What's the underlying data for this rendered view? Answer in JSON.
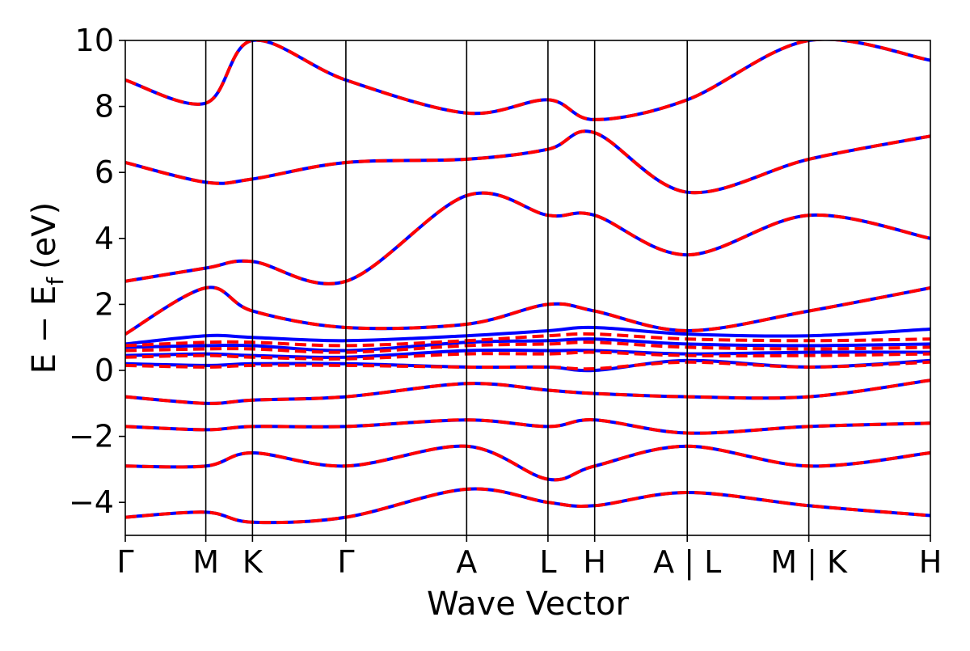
{
  "chart_data": {
    "type": "line",
    "title": "",
    "xlabel": "Wave Vector",
    "ylabel": "E − E",
    "ylabel_subscript": "f",
    "ylabel_unit": "(eV)",
    "ylim": [
      -5,
      10
    ],
    "yticks": [
      -4,
      -2,
      0,
      2,
      4,
      6,
      8,
      10
    ],
    "ytick_labels": [
      "−4",
      "−2",
      "0",
      "2",
      "4",
      "6",
      "8",
      "10"
    ],
    "xlim": [
      0,
      1
    ],
    "kpath": [
      {
        "x": 0.0,
        "label": "Γ"
      },
      {
        "x": 0.1,
        "label": "M"
      },
      {
        "x": 0.158,
        "label": "K"
      },
      {
        "x": 0.274,
        "label": "Γ"
      },
      {
        "x": 0.424,
        "label": "A"
      },
      {
        "x": 0.525,
        "label": "L"
      },
      {
        "x": 0.583,
        "label": "H"
      },
      {
        "x": 0.698,
        "label": "A | L"
      },
      {
        "x": 0.849,
        "label": "M | K"
      },
      {
        "x": 1.0,
        "label": "H"
      }
    ],
    "grid": false,
    "legend": "none",
    "series": [
      {
        "style": "solid",
        "color": "#0000ff",
        "bands": [
          {
            "x": [
              0,
              0.1,
              0.158,
              0.274,
              0.424,
              0.525,
              0.583,
              0.698,
              0.849,
              1.0
            ],
            "y": [
              -4.45,
              -4.3,
              -4.6,
              -4.45,
              -3.6,
              -4.0,
              -4.1,
              -3.7,
              -4.1,
              -4.4
            ]
          },
          {
            "x": [
              0,
              0.1,
              0.158,
              0.274,
              0.424,
              0.525,
              0.583,
              0.698,
              0.849,
              1.0
            ],
            "y": [
              -2.9,
              -2.9,
              -2.5,
              -2.9,
              -2.3,
              -3.3,
              -2.9,
              -2.3,
              -2.9,
              -2.5
            ]
          },
          {
            "x": [
              0,
              0.1,
              0.158,
              0.274,
              0.424,
              0.525,
              0.583,
              0.698,
              0.849,
              1.0
            ],
            "y": [
              -1.7,
              -1.8,
              -1.7,
              -1.7,
              -1.5,
              -1.7,
              -1.5,
              -1.9,
              -1.7,
              -1.6
            ]
          },
          {
            "x": [
              0,
              0.1,
              0.158,
              0.274,
              0.424,
              0.525,
              0.583,
              0.698,
              0.849,
              1.0
            ],
            "y": [
              -0.8,
              -1.0,
              -0.9,
              -0.8,
              -0.4,
              -0.6,
              -0.7,
              -0.8,
              -0.8,
              -0.3
            ]
          },
          {
            "x": [
              0,
              0.1,
              0.158,
              0.274,
              0.424,
              0.525,
              0.583,
              0.698,
              0.849,
              1.0
            ],
            "y": [
              0.2,
              0.15,
              0.2,
              0.2,
              0.1,
              0.1,
              0.0,
              0.3,
              0.1,
              0.3
            ]
          },
          {
            "x": [
              0,
              0.1,
              0.158,
              0.274,
              0.424,
              0.525,
              0.583,
              0.698,
              0.849,
              1.0
            ],
            "y": [
              0.45,
              0.5,
              0.45,
              0.4,
              0.6,
              0.6,
              0.6,
              0.5,
              0.55,
              0.55
            ]
          },
          {
            "x": [
              0,
              0.1,
              0.158,
              0.274,
              0.424,
              0.525,
              0.583,
              0.698,
              0.849,
              1.0
            ],
            "y": [
              0.7,
              0.75,
              0.75,
              0.6,
              0.85,
              0.9,
              0.95,
              0.8,
              0.75,
              0.8
            ]
          },
          {
            "x": [
              0,
              0.1,
              0.158,
              0.274,
              0.424,
              0.525,
              0.583,
              0.698,
              0.849,
              1.0
            ],
            "y": [
              0.8,
              1.05,
              1.0,
              0.9,
              1.05,
              1.2,
              1.3,
              1.1,
              1.05,
              1.25
            ]
          },
          {
            "x": [
              0,
              0.1,
              0.158,
              0.274,
              0.424,
              0.525,
              0.583,
              0.698,
              0.849,
              1.0
            ],
            "y": [
              1.1,
              2.5,
              1.8,
              1.3,
              1.4,
              2.0,
              1.8,
              1.2,
              1.8,
              2.5
            ]
          },
          {
            "x": [
              0,
              0.1,
              0.158,
              0.274,
              0.424,
              0.525,
              0.583,
              0.698,
              0.849,
              1.0
            ],
            "y": [
              2.7,
              3.1,
              3.3,
              2.7,
              5.3,
              4.7,
              4.7,
              3.5,
              4.7,
              4.0
            ]
          },
          {
            "x": [
              0,
              0.1,
              0.158,
              0.274,
              0.424,
              0.525,
              0.583,
              0.698,
              0.849,
              1.0
            ],
            "y": [
              6.3,
              5.7,
              5.8,
              6.3,
              6.4,
              6.7,
              7.2,
              5.4,
              6.4,
              7.1
            ]
          },
          {
            "x": [
              0,
              0.1,
              0.158,
              0.274,
              0.424,
              0.525,
              0.583,
              0.698,
              0.849,
              1.0
            ],
            "y": [
              8.8,
              8.1,
              10.0,
              8.8,
              7.8,
              8.2,
              7.6,
              8.2,
              10.0,
              9.4
            ]
          }
        ]
      },
      {
        "style": "dashed",
        "color": "#ff0000",
        "bands": [
          {
            "x": [
              0,
              0.1,
              0.158,
              0.274,
              0.424,
              0.525,
              0.583,
              0.698,
              0.849,
              1.0
            ],
            "y": [
              -4.45,
              -4.3,
              -4.6,
              -4.45,
              -3.6,
              -4.0,
              -4.1,
              -3.7,
              -4.1,
              -4.4
            ]
          },
          {
            "x": [
              0,
              0.1,
              0.158,
              0.274,
              0.424,
              0.525,
              0.583,
              0.698,
              0.849,
              1.0
            ],
            "y": [
              -2.9,
              -2.9,
              -2.5,
              -2.9,
              -2.3,
              -3.3,
              -2.9,
              -2.3,
              -2.9,
              -2.5
            ]
          },
          {
            "x": [
              0,
              0.1,
              0.158,
              0.274,
              0.424,
              0.525,
              0.583,
              0.698,
              0.849,
              1.0
            ],
            "y": [
              -1.7,
              -1.8,
              -1.7,
              -1.7,
              -1.5,
              -1.7,
              -1.5,
              -1.9,
              -1.7,
              -1.6
            ]
          },
          {
            "x": [
              0,
              0.1,
              0.158,
              0.274,
              0.424,
              0.525,
              0.583,
              0.698,
              0.849,
              1.0
            ],
            "y": [
              -0.8,
              -1.0,
              -0.9,
              -0.8,
              -0.4,
              -0.6,
              -0.7,
              -0.8,
              -0.8,
              -0.3
            ]
          },
          {
            "x": [
              0,
              0.1,
              0.158,
              0.274,
              0.424,
              0.525,
              0.583,
              0.698,
              0.849,
              1.0
            ],
            "y": [
              0.15,
              0.1,
              0.15,
              0.15,
              0.1,
              0.1,
              0.05,
              0.25,
              0.1,
              0.25
            ]
          },
          {
            "x": [
              0,
              0.1,
              0.158,
              0.274,
              0.424,
              0.525,
              0.583,
              0.698,
              0.849,
              1.0
            ],
            "y": [
              0.4,
              0.45,
              0.4,
              0.35,
              0.5,
              0.5,
              0.55,
              0.45,
              0.45,
              0.5
            ]
          },
          {
            "x": [
              0,
              0.1,
              0.158,
              0.274,
              0.424,
              0.525,
              0.583,
              0.698,
              0.849,
              1.0
            ],
            "y": [
              0.6,
              0.65,
              0.65,
              0.55,
              0.75,
              0.8,
              0.85,
              0.7,
              0.65,
              0.7
            ]
          },
          {
            "x": [
              0,
              0.1,
              0.158,
              0.274,
              0.424,
              0.525,
              0.583,
              0.698,
              0.849,
              1.0
            ],
            "y": [
              0.75,
              0.85,
              0.85,
              0.75,
              0.9,
              1.05,
              1.1,
              0.95,
              0.9,
              0.95
            ]
          },
          {
            "x": [
              0,
              0.1,
              0.158,
              0.274,
              0.424,
              0.525,
              0.583,
              0.698,
              0.849,
              1.0
            ],
            "y": [
              1.1,
              2.5,
              1.8,
              1.3,
              1.4,
              2.0,
              1.8,
              1.2,
              1.8,
              2.5
            ]
          },
          {
            "x": [
              0,
              0.1,
              0.158,
              0.274,
              0.424,
              0.525,
              0.583,
              0.698,
              0.849,
              1.0
            ],
            "y": [
              2.7,
              3.1,
              3.3,
              2.7,
              5.3,
              4.7,
              4.7,
              3.5,
              4.7,
              4.0
            ]
          },
          {
            "x": [
              0,
              0.1,
              0.158,
              0.274,
              0.424,
              0.525,
              0.583,
              0.698,
              0.849,
              1.0
            ],
            "y": [
              6.3,
              5.7,
              5.8,
              6.3,
              6.4,
              6.7,
              7.2,
              5.4,
              6.4,
              7.1
            ]
          },
          {
            "x": [
              0,
              0.1,
              0.158,
              0.274,
              0.424,
              0.525,
              0.583,
              0.698,
              0.849,
              1.0
            ],
            "y": [
              8.8,
              8.1,
              10.0,
              8.8,
              7.8,
              8.2,
              7.6,
              8.2,
              10.0,
              9.4
            ]
          }
        ]
      }
    ]
  }
}
